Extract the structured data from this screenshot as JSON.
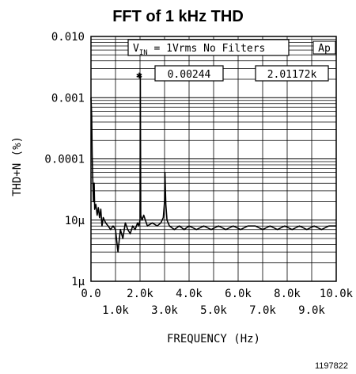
{
  "chart_data": {
    "type": "line",
    "title": "FFT of 1 kHz THD",
    "xlabel": "FREQUENCY (Hz)",
    "ylabel": "THD+N (%)",
    "x_scale": "linear",
    "y_scale": "log",
    "xlim": [
      0,
      10000
    ],
    "ylim": [
      1e-06,
      0.01
    ],
    "x_ticks_top_row": [
      "0.0",
      "2.0k",
      "4.0k",
      "6.0k",
      "8.0k",
      "10.0k"
    ],
    "x_ticks_bottom_row": [
      "1.0k",
      "3.0k",
      "5.0k",
      "7.0k",
      "9.0k"
    ],
    "y_ticks": [
      "0.010",
      "0.001",
      "0.0001",
      "10μ",
      "1μ"
    ],
    "grid": true,
    "annotations": {
      "conditions_prefix": "V",
      "conditions_subscript": "IN",
      "conditions_suffix": " = 1Vrms  No Filters",
      "ap_badge": "Ap",
      "marker_symbol": "✱",
      "marker_value": "0.00244",
      "marker_freq": "2.01172k"
    },
    "series": [
      {
        "values_x_hz": [
          0,
          30,
          50,
          70,
          100,
          130,
          150,
          200,
          250,
          300,
          350,
          400,
          450,
          500,
          600,
          700,
          800,
          900,
          1000,
          1100,
          1200,
          1300,
          1400,
          1500,
          1600,
          1700,
          1800,
          1900,
          1950,
          2000,
          2011.72,
          2030,
          2080,
          2150,
          2300,
          2500,
          2700,
          2850,
          2950,
          3000,
          3017.58,
          3050,
          3100,
          3200,
          3400,
          3600,
          3800,
          4000,
          4300,
          4600,
          4900,
          5200,
          5500,
          5800,
          6100,
          6400,
          6700,
          7000,
          7300,
          7600,
          7900,
          8200,
          8500,
          8800,
          9100,
          9400,
          9700,
          10000
        ],
        "values_y_pct": [
          0.001,
          0.0005,
          0.00012,
          5e-05,
          2e-05,
          4e-05,
          1.5e-05,
          1.8e-05,
          1.2e-05,
          1.6e-05,
          1.1e-05,
          1.5e-05,
          8e-06,
          1.1e-05,
          9e-06,
          8e-06,
          7e-06,
          8e-06,
          7e-06,
          3e-06,
          7e-06,
          5e-06,
          9e-06,
          7e-06,
          6e-06,
          8e-06,
          7e-06,
          9e-06,
          8e-06,
          1e-05,
          0.00244,
          1.2e-05,
          1e-05,
          1.2e-05,
          8e-06,
          9e-06,
          8e-06,
          9e-06,
          1.1e-05,
          2e-05,
          6e-05,
          1.8e-05,
          1e-05,
          8e-06,
          7e-06,
          8e-06,
          7e-06,
          8e-06,
          7e-06,
          8e-06,
          7e-06,
          8e-06,
          7e-06,
          8e-06,
          7e-06,
          8e-06,
          8e-06,
          7e-06,
          8e-06,
          7e-06,
          8e-06,
          7e-06,
          8e-06,
          7e-06,
          8e-06,
          7e-06,
          8e-06,
          8e-06
        ]
      }
    ]
  },
  "figure_id": "1197822"
}
